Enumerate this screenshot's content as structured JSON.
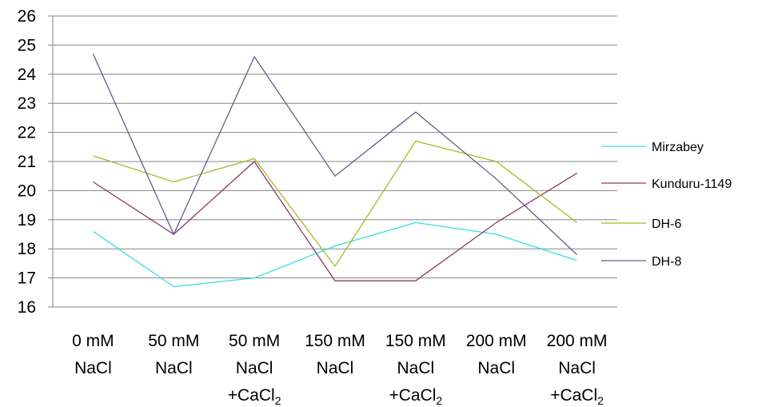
{
  "chart_data": {
    "type": "line",
    "title": "",
    "xlabel": "",
    "ylabel": "",
    "categories": [
      [
        "0 mM",
        "NaCl",
        ""
      ],
      [
        "50 mM",
        "NaCl",
        ""
      ],
      [
        "50 mM",
        "NaCl",
        "+CaCl2"
      ],
      [
        "150 mM",
        "NaCl",
        ""
      ],
      [
        "150 mM",
        "NaCl",
        "+CaCl2"
      ],
      [
        "200 mM",
        "NaCl",
        ""
      ],
      [
        "200 mM",
        "NaCl",
        "+CaCl2"
      ]
    ],
    "ylim": [
      16,
      26
    ],
    "yticks": [
      16,
      17,
      18,
      19,
      20,
      21,
      22,
      23,
      24,
      25,
      26
    ],
    "grid": true,
    "legend_position": "right",
    "series": [
      {
        "name": "Mirzabey",
        "color": "#33e0e0",
        "values": [
          18.6,
          16.7,
          17.0,
          18.1,
          18.9,
          18.5,
          17.6
        ]
      },
      {
        "name": "Kunduru-1149",
        "color": "#8b3a62",
        "values": [
          20.3,
          18.5,
          21.0,
          16.9,
          16.9,
          18.9,
          20.6
        ]
      },
      {
        "name": "DH-6",
        "color": "#9fbe22",
        "values": [
          21.2,
          20.3,
          21.1,
          17.4,
          21.7,
          21.0,
          18.9
        ]
      },
      {
        "name": "DH-8",
        "color": "#5f5f8f",
        "values": [
          24.7,
          18.5,
          24.6,
          20.5,
          22.7,
          20.4,
          17.8
        ]
      }
    ]
  }
}
